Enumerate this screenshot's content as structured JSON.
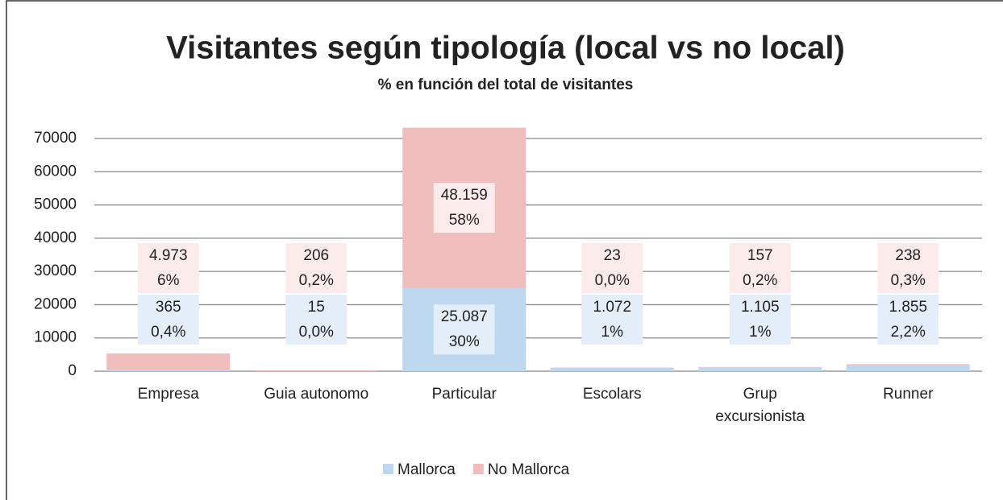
{
  "chart_data": {
    "type": "stacked_bar",
    "title": "Visitantes según tipología (local vs no local)",
    "subtitle": "% en función del total de visitantes",
    "categories": [
      "Empresa",
      "Guia autonomo",
      "Particular",
      "Escolars",
      "Grup excursionista",
      "Runner"
    ],
    "series": [
      {
        "name": "Mallorca",
        "color": "#bdd7ee",
        "label_color": "#e4eef9",
        "values": [
          365,
          15,
          25087,
          1072,
          1105,
          1855
        ],
        "value_labels": [
          "365",
          "15",
          "25.087",
          "1.072",
          "1.105",
          "1.855"
        ],
        "share_labels": [
          "0,4%",
          "0,0%",
          "30%",
          "1%",
          "1%",
          "2,2%"
        ]
      },
      {
        "name": "No Mallorca",
        "color": "#f0bdbd",
        "label_color": "#fbeceb",
        "values": [
          4973,
          206,
          48159,
          23,
          157,
          238
        ],
        "value_labels": [
          "4.973",
          "206",
          "48.159",
          "23",
          "157",
          "238"
        ],
        "share_labels": [
          "6%",
          "0,2%",
          "58%",
          "0,0%",
          "0,2%",
          "0,3%"
        ]
      }
    ],
    "ylim": [
      0,
      70000
    ],
    "yticks": [
      0,
      10000,
      20000,
      30000,
      40000,
      50000,
      60000,
      70000
    ],
    "grid": true,
    "legend": "bottom"
  }
}
